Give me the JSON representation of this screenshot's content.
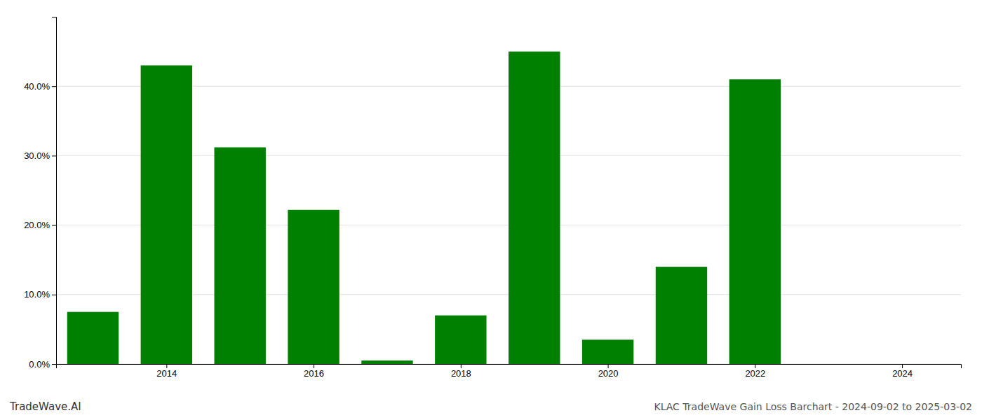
{
  "chart_data": {
    "type": "bar",
    "title": "KLAC TradeWave Gain Loss Barchart - 2024-09-02 to 2025-03-02",
    "annotations": [
      {
        "text": "TradeWave.AI"
      }
    ],
    "x": [
      2013,
      2014,
      2015,
      2016,
      2017,
      2018,
      2019,
      2020,
      2021,
      2022,
      2023
    ],
    "values": [
      0.075,
      0.43,
      0.312,
      0.222,
      0.005,
      0.07,
      0.45,
      0.035,
      0.14,
      0.41,
      0.0
    ],
    "color": "#008000",
    "xlim": [
      2012.5,
      2024.8
    ],
    "xticks": [
      2014,
      2016,
      2018,
      2020,
      2022,
      2024
    ],
    "ylim": [
      0,
      0.5
    ],
    "yticks": [
      {
        "value": 0.0,
        "label": "0.0%"
      },
      {
        "value": 0.1,
        "label": "10.0%"
      },
      {
        "value": 0.2,
        "label": "20.0%"
      },
      {
        "value": 0.3,
        "label": "30.0%"
      },
      {
        "value": 0.4,
        "label": "40.0%"
      }
    ],
    "grid": true
  }
}
